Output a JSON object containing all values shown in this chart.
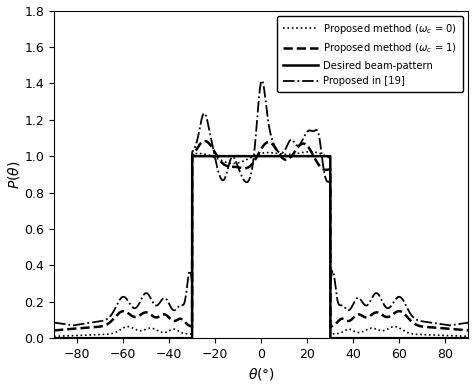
{
  "title": "",
  "xlabel": "$\\theta$(°)",
  "ylabel": "$P(\\theta)$",
  "xlim": [
    -90,
    90
  ],
  "ylim": [
    0,
    1.8
  ],
  "xticks": [
    -80,
    -60,
    -40,
    -20,
    0,
    20,
    40,
    60,
    80
  ],
  "yticks": [
    0,
    0.2,
    0.4,
    0.6,
    0.8,
    1.0,
    1.2,
    1.4,
    1.6,
    1.8
  ],
  "legend_labels": [
    "Proposed method ($\\omega_c$ = 0)",
    "Proposed method ($\\omega_c$ = 1)",
    "Desired beam-pattern",
    "Proposed in [19]"
  ],
  "background_color": "white"
}
